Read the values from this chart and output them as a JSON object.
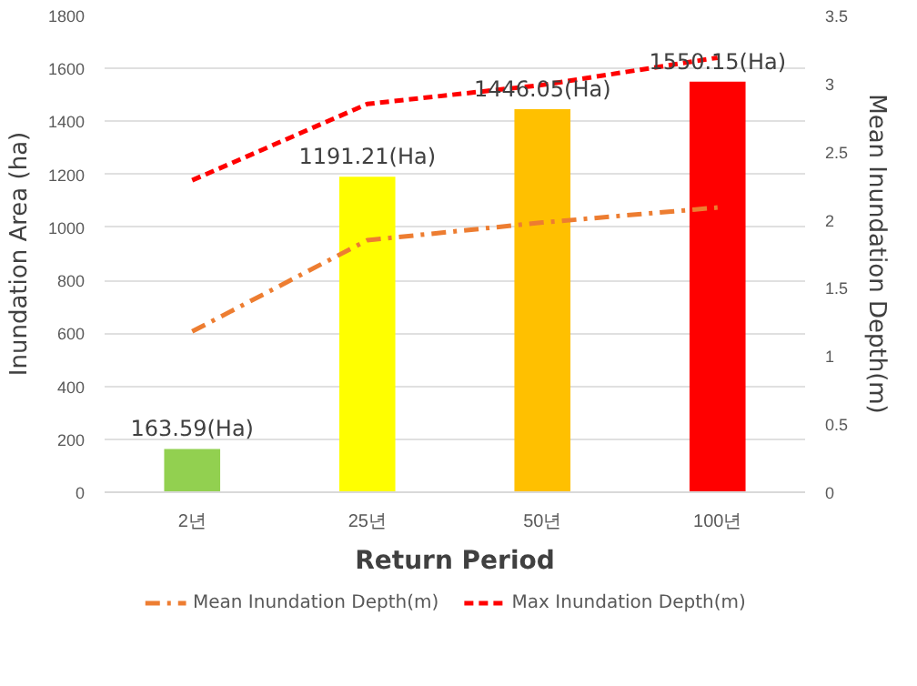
{
  "chart_data": {
    "type": "bar",
    "xlabel": "Return Period",
    "ylabel": "Inundation Area (ha)",
    "y2label": "Mean Inundation Depth(m)",
    "categories": [
      "2년",
      "25년",
      "50년",
      "100년"
    ],
    "values": [
      163.59,
      1191.21,
      1446.05,
      1550.15
    ],
    "colors": [
      "#92d050",
      "#ffff00",
      "#ffc000",
      "#ff0000"
    ],
    "value_labels": [
      "163.59(Ha)",
      "1191.21(Ha)",
      "1446.05(Ha)",
      "1550.15(Ha)"
    ],
    "series": [
      {
        "name": "Mean Inundation Depth(m)",
        "type": "line",
        "axis": "y2",
        "color": "#ed7d31",
        "line_style": "dashdot",
        "values": [
          1.18,
          1.85,
          1.98,
          2.09
        ]
      },
      {
        "name": "Max Inundation Depth(m)",
        "type": "line",
        "axis": "y2",
        "color": "#ff0000",
        "line_style": "dashed",
        "values": [
          2.29,
          2.85,
          2.99,
          3.19
        ]
      }
    ],
    "ylim": [
      0,
      1800
    ],
    "yticks": [
      0,
      200,
      400,
      600,
      800,
      1000,
      1200,
      1400,
      1600,
      1800
    ],
    "y2lim": [
      0,
      3.5
    ],
    "y2ticks": [
      0,
      0.5,
      1,
      1.5,
      2,
      2.5,
      3,
      3.5
    ],
    "grid": "y",
    "legend": "bottom"
  }
}
